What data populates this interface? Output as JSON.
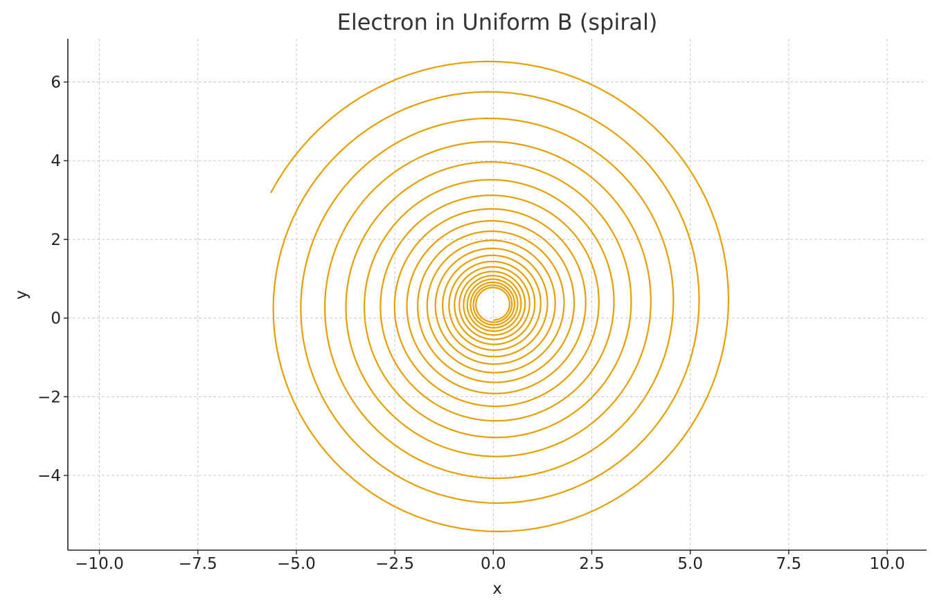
{
  "chart_data": {
    "type": "line",
    "title": "Electron in Uniform B (spiral)",
    "xlabel": "x",
    "ylabel": "y",
    "xlim": [
      -10.8,
      11.0
    ],
    "ylim": [
      -5.9,
      7.1
    ],
    "grid": true,
    "xticks": [
      -10.0,
      -7.5,
      -5.0,
      -2.5,
      0.0,
      2.5,
      5.0,
      7.5,
      10.0
    ],
    "xtick_labels": [
      "−10.0",
      "−7.5",
      "−5.0",
      "−2.5",
      "0.0",
      "2.5",
      "5.0",
      "7.5",
      "10.0"
    ],
    "yticks": [
      -4,
      -2,
      0,
      2,
      4,
      6
    ],
    "ytick_labels": [
      "−4",
      "−2",
      "0",
      "2",
      "4",
      "6"
    ],
    "series": [
      {
        "color": "#e69f00",
        "center": [
          0.0,
          0.35
        ],
        "turns": 20,
        "start_point": [
          0.0,
          -0.05
        ],
        "end_point": [
          -5.65,
          3.18
        ]
      }
    ]
  }
}
